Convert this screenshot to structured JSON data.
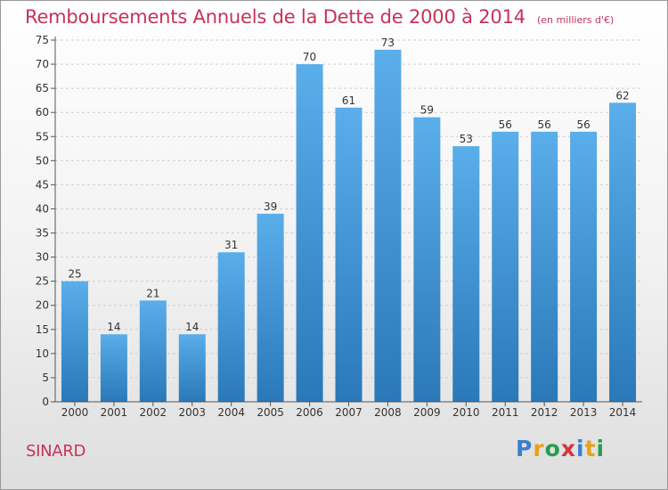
{
  "header": {
    "title": "Remboursements Annuels de la Dette de 2000 à 2014",
    "subtitle": "(en milliers d'€)"
  },
  "footer": {
    "commune": "SINARD",
    "logo_text": "Proxiti",
    "logo_colors": [
      "#3a7fd0",
      "#e8a21a",
      "#2a9d4a",
      "#d8323c",
      "#3a7fd0",
      "#e8a21a",
      "#2a9d4a"
    ]
  },
  "colors": {
    "bar_top": "#5aaeea",
    "bar_bottom": "#2a78b8",
    "grid": "#cfcfcf",
    "axis": "#555555",
    "text": "#333333"
  },
  "chart_data": {
    "type": "bar",
    "categories": [
      "2000",
      "2001",
      "2002",
      "2003",
      "2004",
      "2005",
      "2006",
      "2007",
      "2008",
      "2009",
      "2010",
      "2011",
      "2012",
      "2013",
      "2014"
    ],
    "values": [
      25,
      14,
      21,
      14,
      31,
      39,
      70,
      61,
      73,
      59,
      53,
      56,
      56,
      56,
      62
    ],
    "title": "Remboursements Annuels de la Dette de 2000 à 2014",
    "xlabel": "",
    "ylabel": "",
    "ylim": [
      0,
      75
    ],
    "yticks": [
      0,
      5,
      10,
      15,
      20,
      25,
      30,
      35,
      40,
      45,
      50,
      55,
      60,
      65,
      70,
      75
    ],
    "grid": "horizontal-dashed",
    "data_labels": true
  }
}
